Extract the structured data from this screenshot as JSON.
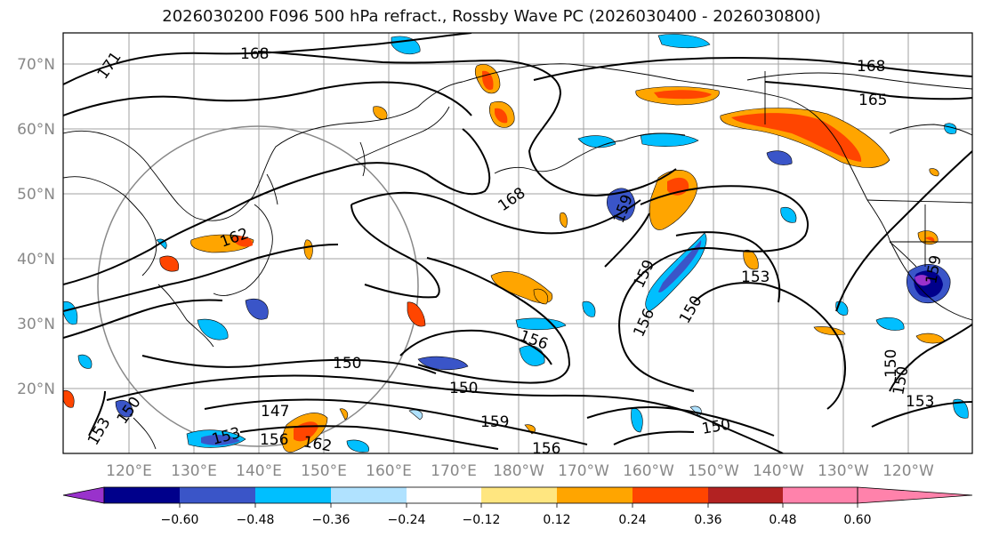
{
  "title": "2026030200 F096 500 hPa refract., Rossby Wave PC (2026030400 - 2026030800)",
  "lat_labels": [
    "70°N",
    "60°N",
    "50°N",
    "40°N",
    "30°N",
    "20°N"
  ],
  "lon_labels": [
    "120°E",
    "130°E",
    "140°E",
    "150°E",
    "160°E",
    "170°E",
    "180°W",
    "170°W",
    "160°W",
    "150°W",
    "140°W",
    "130°W",
    "120°W"
  ],
  "contour_labels": [
    "171",
    "168",
    "168",
    "165",
    "168",
    "162",
    "159",
    "159",
    "153",
    "150",
    "156",
    "156",
    "150",
    "150",
    "150",
    "147",
    "150",
    "159",
    "153",
    "153",
    "156",
    "162",
    "150",
    "153",
    "150",
    "156",
    "159"
  ],
  "colorbar": {
    "tick_labels": [
      "−0.60",
      "−0.48",
      "−0.36",
      "−0.24",
      "−0.12",
      "0.12",
      "0.24",
      "0.36",
      "0.48",
      "0.60"
    ],
    "colors": [
      "#9932cc",
      "#00008b",
      "#3a55c8",
      "#00bfff",
      "#b0e2ff",
      "#ffffff",
      "#ffe680",
      "#ffa500",
      "#ff4500",
      "#b22222",
      "#ff82ab"
    ]
  }
}
